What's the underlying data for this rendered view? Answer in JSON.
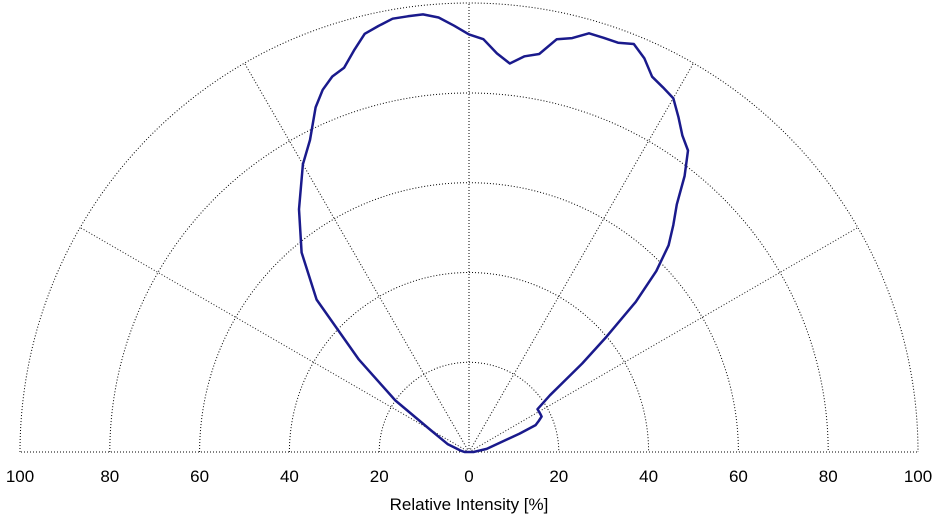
{
  "chart_data": {
    "type": "polar-line",
    "title": "",
    "xlabel": "Relative Intensity [%]",
    "r_range": [
      0,
      100
    ],
    "theta_range_deg": [
      -90,
      90
    ],
    "radial_ticks": [
      20,
      40,
      60,
      80,
      100
    ],
    "tick_labels": [
      "100",
      "80",
      "60",
      "40",
      "20",
      "0",
      "20",
      "40",
      "60",
      "80",
      "100"
    ],
    "angular_grid_deg": [
      -90,
      -60,
      -30,
      0,
      30,
      60,
      90
    ],
    "grid": true,
    "colors": {
      "series": "#1a1a8c",
      "grid": "#000000"
    },
    "series": [
      {
        "theta_deg": [
          -90,
          -80,
          -70,
          -60,
          -55,
          -50,
          -45,
          -40,
          -35,
          -30,
          -27,
          -24,
          -22,
          -20,
          -18,
          -16,
          -14,
          -12,
          -10,
          -8,
          -6,
          -4,
          -2,
          0,
          2,
          4,
          6,
          8,
          10,
          12,
          14,
          16,
          18,
          20,
          22,
          24,
          26,
          28,
          30,
          32,
          34,
          36,
          38,
          40,
          42,
          44,
          46,
          48,
          50,
          52,
          55,
          58,
          60,
          62,
          64,
          66,
          68,
          70,
          80,
          90
        ],
        "r": [
          1,
          2,
          5,
          10,
          20,
          32,
          48,
          58,
          66,
          74,
          78,
          84,
          87,
          89,
          90,
          93,
          96,
          97,
          98,
          98,
          98,
          97,
          95,
          93,
          92,
          89,
          87,
          89,
          90,
          94,
          95,
          97,
          97,
          97,
          98,
          96,
          93,
          92,
          91,
          88,
          85,
          83,
          78,
          72,
          68,
          64,
          58,
          50,
          40,
          32,
          22,
          18,
          18,
          18,
          18,
          17,
          16,
          12,
          4,
          1
        ]
      }
    ]
  }
}
